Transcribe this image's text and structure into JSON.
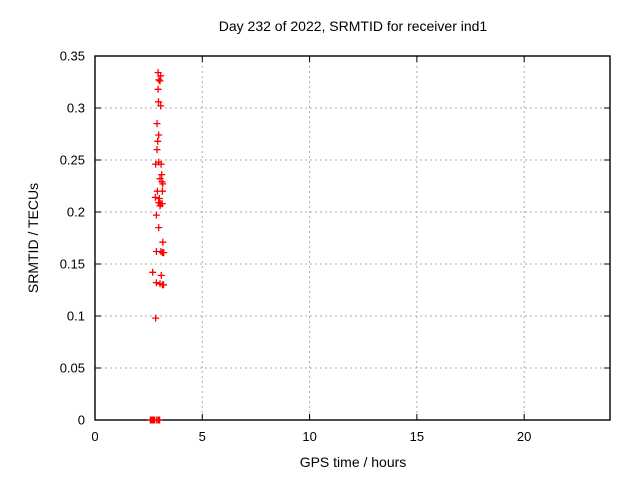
{
  "title": "Day 232 of 2022, SRMTID for receiver ind1",
  "colors": {
    "background": "#ffffff",
    "frame": "#000000",
    "grid": "#ababab",
    "marker": "#ff0000",
    "text": "#000000"
  },
  "chart_data": {
    "type": "scatter",
    "title": "Day 232 of 2022, SRMTID for receiver ind1",
    "xlabel": "GPS time / hours",
    "ylabel": "SRMTID / TECUs",
    "xlim": [
      0,
      24
    ],
    "ylim": [
      0,
      0.35
    ],
    "xticks": [
      0,
      5,
      10,
      15,
      20
    ],
    "xtick_labels": [
      "0",
      "5",
      "10",
      "15",
      "20"
    ],
    "yticks": [
      0,
      0.05,
      0.1,
      0.15,
      0.2,
      0.25,
      0.3,
      0.35
    ],
    "ytick_labels": [
      "0",
      "0.05",
      "0.1",
      "0.15",
      "0.2",
      "0.25",
      "0.3",
      "0.35"
    ],
    "grid": true,
    "grid_style": "dashed",
    "legend": "none",
    "marker": "plus",
    "marker_color": "#ff0000",
    "series": [
      {
        "name": "SRMTID",
        "points": [
          [
            2.94,
            0.334
          ],
          [
            3.06,
            0.331
          ],
          [
            2.98,
            0.327
          ],
          [
            3.03,
            0.326
          ],
          [
            2.94,
            0.318
          ],
          [
            2.96,
            0.306
          ],
          [
            3.06,
            0.302
          ],
          [
            2.89,
            0.285
          ],
          [
            2.97,
            0.274
          ],
          [
            2.92,
            0.268
          ],
          [
            2.89,
            0.26
          ],
          [
            2.97,
            0.248
          ],
          [
            2.83,
            0.246
          ],
          [
            3.08,
            0.246
          ],
          [
            3.11,
            0.236
          ],
          [
            3.03,
            0.232
          ],
          [
            3.12,
            0.229
          ],
          [
            3.16,
            0.227
          ],
          [
            2.91,
            0.22
          ],
          [
            3.14,
            0.22
          ],
          [
            2.81,
            0.214
          ],
          [
            3.0,
            0.213
          ],
          [
            2.97,
            0.209
          ],
          [
            3.13,
            0.208
          ],
          [
            3.06,
            0.208
          ],
          [
            3.03,
            0.206
          ],
          [
            2.86,
            0.197
          ],
          [
            2.97,
            0.185
          ],
          [
            3.16,
            0.171
          ],
          [
            2.86,
            0.162
          ],
          [
            3.07,
            0.162
          ],
          [
            3.14,
            0.161
          ],
          [
            3.2,
            0.161
          ],
          [
            2.69,
            0.142
          ],
          [
            3.09,
            0.139
          ],
          [
            2.86,
            0.132
          ],
          [
            3.03,
            0.131
          ],
          [
            3.14,
            0.13
          ],
          [
            3.19,
            0.13
          ],
          [
            2.83,
            0.098
          ],
          [
            2.58,
            0
          ],
          [
            2.62,
            0
          ],
          [
            2.66,
            0
          ],
          [
            2.7,
            0
          ],
          [
            2.74,
            0
          ],
          [
            2.78,
            0
          ],
          [
            2.88,
            0
          ],
          [
            2.95,
            0
          ],
          [
            3.01,
            0
          ]
        ]
      }
    ]
  }
}
